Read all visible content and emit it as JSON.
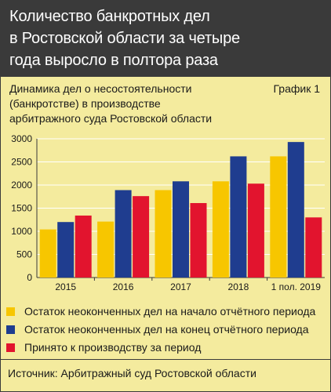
{
  "header": {
    "title": "Количество банкротных дел\nв Ростовской области за четыре\nгода выросло в полтора раза"
  },
  "subheader": {
    "text": "Динамика дел о несостоятельности\n(банкротстве) в производстве\nарбитражного суда Ростовской области",
    "graph_label": "График 1"
  },
  "chart_data": {
    "type": "bar",
    "categories": [
      "2015",
      "2016",
      "2017",
      "2018",
      "1 пол. 2019"
    ],
    "series": [
      {
        "name": "Остаток неоконченных дел на начало отчётного периода",
        "color": "#f7c600",
        "values": [
          1040,
          1210,
          1890,
          2080,
          2620
        ]
      },
      {
        "name": "Остаток неоконченных дел на конец отчётного периода",
        "color": "#1f3d8f",
        "values": [
          1200,
          1890,
          2080,
          2620,
          2930
        ]
      },
      {
        "name": "Принято к производству за период",
        "color": "#e2142e",
        "values": [
          1340,
          1760,
          1610,
          2030,
          1300
        ]
      }
    ],
    "ylim": [
      0,
      3000
    ],
    "yticks": [
      "0",
      "500",
      "1000",
      "1500",
      "2000",
      "2500",
      "3000"
    ],
    "grid": true
  },
  "source": {
    "text": "Источник: Арбитражный суд Ростовской области"
  }
}
